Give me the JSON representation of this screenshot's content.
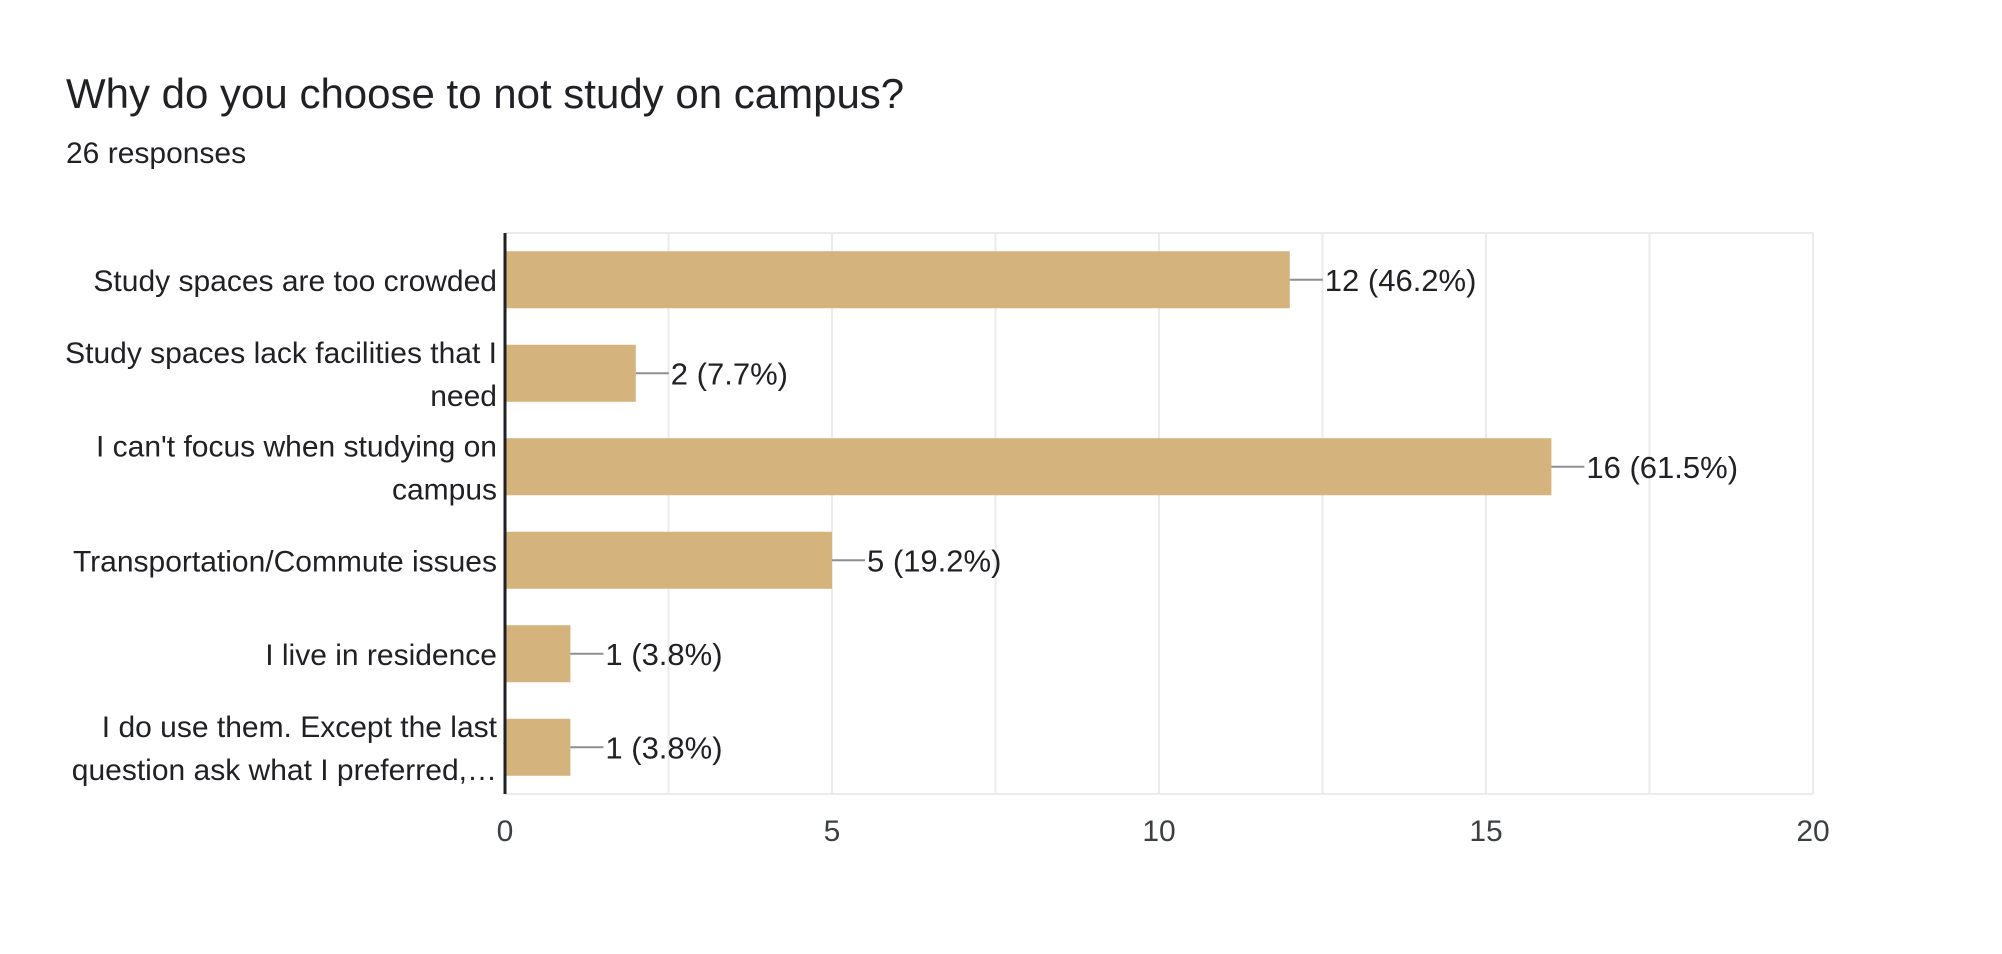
{
  "question": {
    "title": "Why do you choose to not study on campus?",
    "responses": "26 responses"
  },
  "colors": {
    "bar": "#d4b47c",
    "grid": "#ebebeb",
    "axis": "#202124",
    "connector": "#8f8f8f",
    "text": "#202124",
    "tick_text": "#3c4043"
  },
  "chart_data": {
    "type": "bar",
    "orientation": "horizontal",
    "categories": [
      [
        "Study spaces are too crowded"
      ],
      [
        "Study spaces lack facilities that I",
        "need"
      ],
      [
        "I can't focus when studying on",
        "campus"
      ],
      [
        "Transportation/Commute issues"
      ],
      [
        "I live in residence"
      ],
      [
        "I do use them. Except the last",
        "question ask what I preferred,…"
      ]
    ],
    "values": [
      12,
      2,
      16,
      5,
      1,
      1
    ],
    "data_labels": [
      "12 (46.2%)",
      "2 (7.7%)",
      "16 (61.5%)",
      "5 (19.2%)",
      "1 (3.8%)",
      "1 (3.8%)"
    ],
    "xlim": [
      0,
      20
    ],
    "x_ticks": [
      0,
      5,
      10,
      15,
      20
    ],
    "grid": true,
    "legend": "none"
  }
}
